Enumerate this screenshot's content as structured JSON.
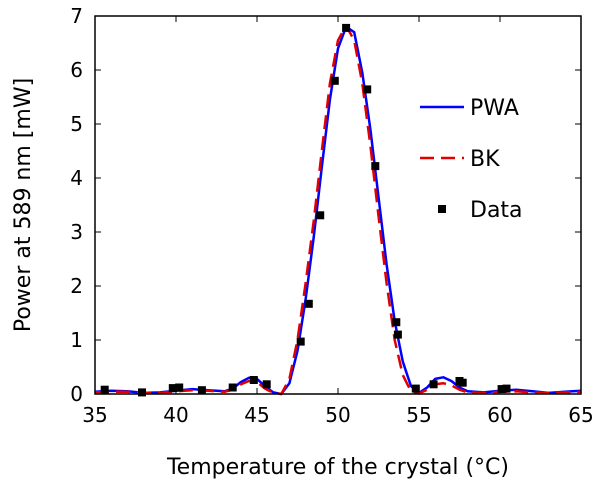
{
  "chart_data": {
    "type": "line",
    "xlabel": "Temperature of the crystal (°C)",
    "ylabel": "Power at 589 nm [mW]",
    "xlim": [
      35,
      65
    ],
    "ylim": [
      0,
      7
    ],
    "xticks": [
      35,
      40,
      45,
      50,
      55,
      60,
      65
    ],
    "yticks": [
      0,
      1,
      2,
      3,
      4,
      5,
      6,
      7
    ],
    "grid": false,
    "legend_position": "right",
    "series": [
      {
        "name": "PWA",
        "kind": "line",
        "style": "solid",
        "color": "#0000ff",
        "x": [
          35,
          36,
          37,
          38,
          39,
          40,
          41,
          42,
          43,
          43.5,
          44,
          44.5,
          45,
          45.5,
          46,
          46.5,
          47,
          47.5,
          48,
          48.5,
          49,
          49.5,
          50,
          50.5,
          51,
          51.5,
          52,
          52.5,
          53,
          53.5,
          54,
          54.5,
          55,
          55.5,
          56,
          56.5,
          57,
          57.5,
          58,
          59,
          60,
          61,
          62,
          63,
          64,
          65
        ],
        "y": [
          0.04,
          0.06,
          0.05,
          0.02,
          0.03,
          0.06,
          0.09,
          0.07,
          0.05,
          0.1,
          0.22,
          0.3,
          0.28,
          0.14,
          0.03,
          0.0,
          0.2,
          0.8,
          1.75,
          2.9,
          4.2,
          5.45,
          6.4,
          6.8,
          6.7,
          5.95,
          4.9,
          3.65,
          2.4,
          1.35,
          0.6,
          0.15,
          0.02,
          0.12,
          0.28,
          0.31,
          0.24,
          0.12,
          0.05,
          0.03,
          0.06,
          0.08,
          0.05,
          0.02,
          0.04,
          0.06
        ]
      },
      {
        "name": "BK",
        "kind": "line",
        "style": "dashed",
        "color": "#e00000",
        "x": [
          35,
          36,
          37,
          38,
          39,
          40,
          41,
          42,
          43,
          43.5,
          44,
          44.5,
          45,
          45.5,
          46,
          46.5,
          47,
          47.5,
          48,
          48.5,
          49,
          49.5,
          50,
          50.5,
          51,
          51.5,
          52,
          52.5,
          53,
          53.5,
          54,
          54.5,
          55,
          55.5,
          56,
          56.5,
          57,
          57.5,
          58,
          59,
          60,
          61,
          62,
          63,
          64,
          65
        ],
        "y": [
          0.03,
          0.04,
          0.04,
          0.02,
          0.02,
          0.05,
          0.07,
          0.06,
          0.04,
          0.08,
          0.18,
          0.24,
          0.22,
          0.1,
          0.02,
          0.0,
          0.28,
          1.0,
          2.05,
          3.2,
          4.5,
          5.75,
          6.55,
          6.82,
          6.55,
          5.75,
          4.6,
          3.3,
          2.05,
          1.0,
          0.35,
          0.05,
          0.01,
          0.08,
          0.18,
          0.2,
          0.16,
          0.08,
          0.03,
          0.02,
          0.04,
          0.05,
          0.03,
          0.02,
          0.03,
          0.04
        ]
      },
      {
        "name": "Data",
        "kind": "scatter",
        "marker": "square",
        "color": "#000000",
        "x": [
          35.6,
          37.9,
          39.8,
          40.2,
          41.6,
          43.5,
          44.8,
          45.6,
          47.7,
          48.2,
          48.9,
          49.8,
          50.5,
          51.8,
          52.3,
          53.6,
          53.7,
          54.8,
          55.9,
          57.5,
          57.7,
          60.1,
          60.4
        ],
        "y": [
          0.08,
          0.03,
          0.11,
          0.12,
          0.07,
          0.12,
          0.26,
          0.18,
          0.97,
          1.67,
          3.31,
          5.8,
          6.78,
          5.64,
          4.22,
          1.33,
          1.1,
          0.1,
          0.18,
          0.24,
          0.21,
          0.09,
          0.1
        ]
      }
    ]
  }
}
